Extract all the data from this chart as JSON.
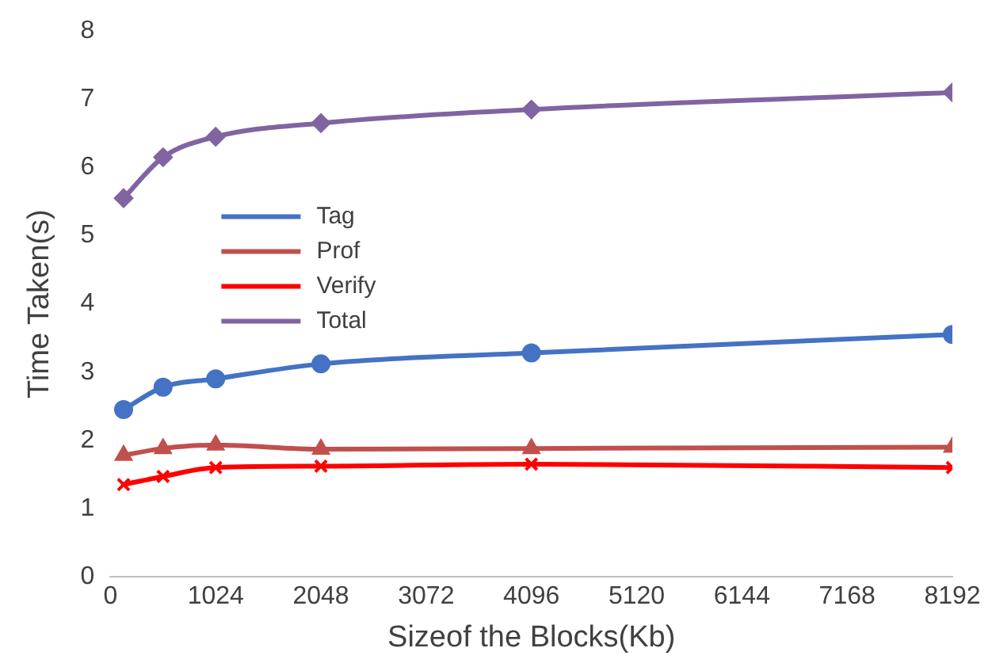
{
  "chart_data": {
    "type": "line",
    "xlabel": "Sizeof the Blocks(Kb)",
    "ylabel": "Time Taken(s)",
    "x": [
      128,
      512,
      1024,
      2048,
      4096,
      8192
    ],
    "xlim": [
      0,
      8192
    ],
    "xticks": [
      0,
      1024,
      2048,
      3072,
      4096,
      5120,
      6144,
      7168,
      8192
    ],
    "ylim": [
      0,
      8
    ],
    "yticks": [
      0,
      1,
      2,
      3,
      4,
      5,
      6,
      7,
      8
    ],
    "legend": "left",
    "grid": false,
    "series": [
      {
        "name": "Tag",
        "color": "#4472c4",
        "marker": "circle",
        "values": [
          2.45,
          2.78,
          2.9,
          3.12,
          3.28,
          3.55
        ]
      },
      {
        "name": "Prof",
        "color": "#c0504d",
        "marker": "triangle",
        "values": [
          1.78,
          1.88,
          1.93,
          1.87,
          1.88,
          1.9
        ]
      },
      {
        "name": "Verify",
        "color": "#ff0000",
        "marker": "cross",
        "values": [
          1.35,
          1.47,
          1.6,
          1.62,
          1.65,
          1.6
        ]
      },
      {
        "name": "Total",
        "color": "#8064a2",
        "marker": "diamond",
        "values": [
          5.55,
          6.15,
          6.45,
          6.65,
          6.85,
          7.1
        ]
      }
    ]
  }
}
